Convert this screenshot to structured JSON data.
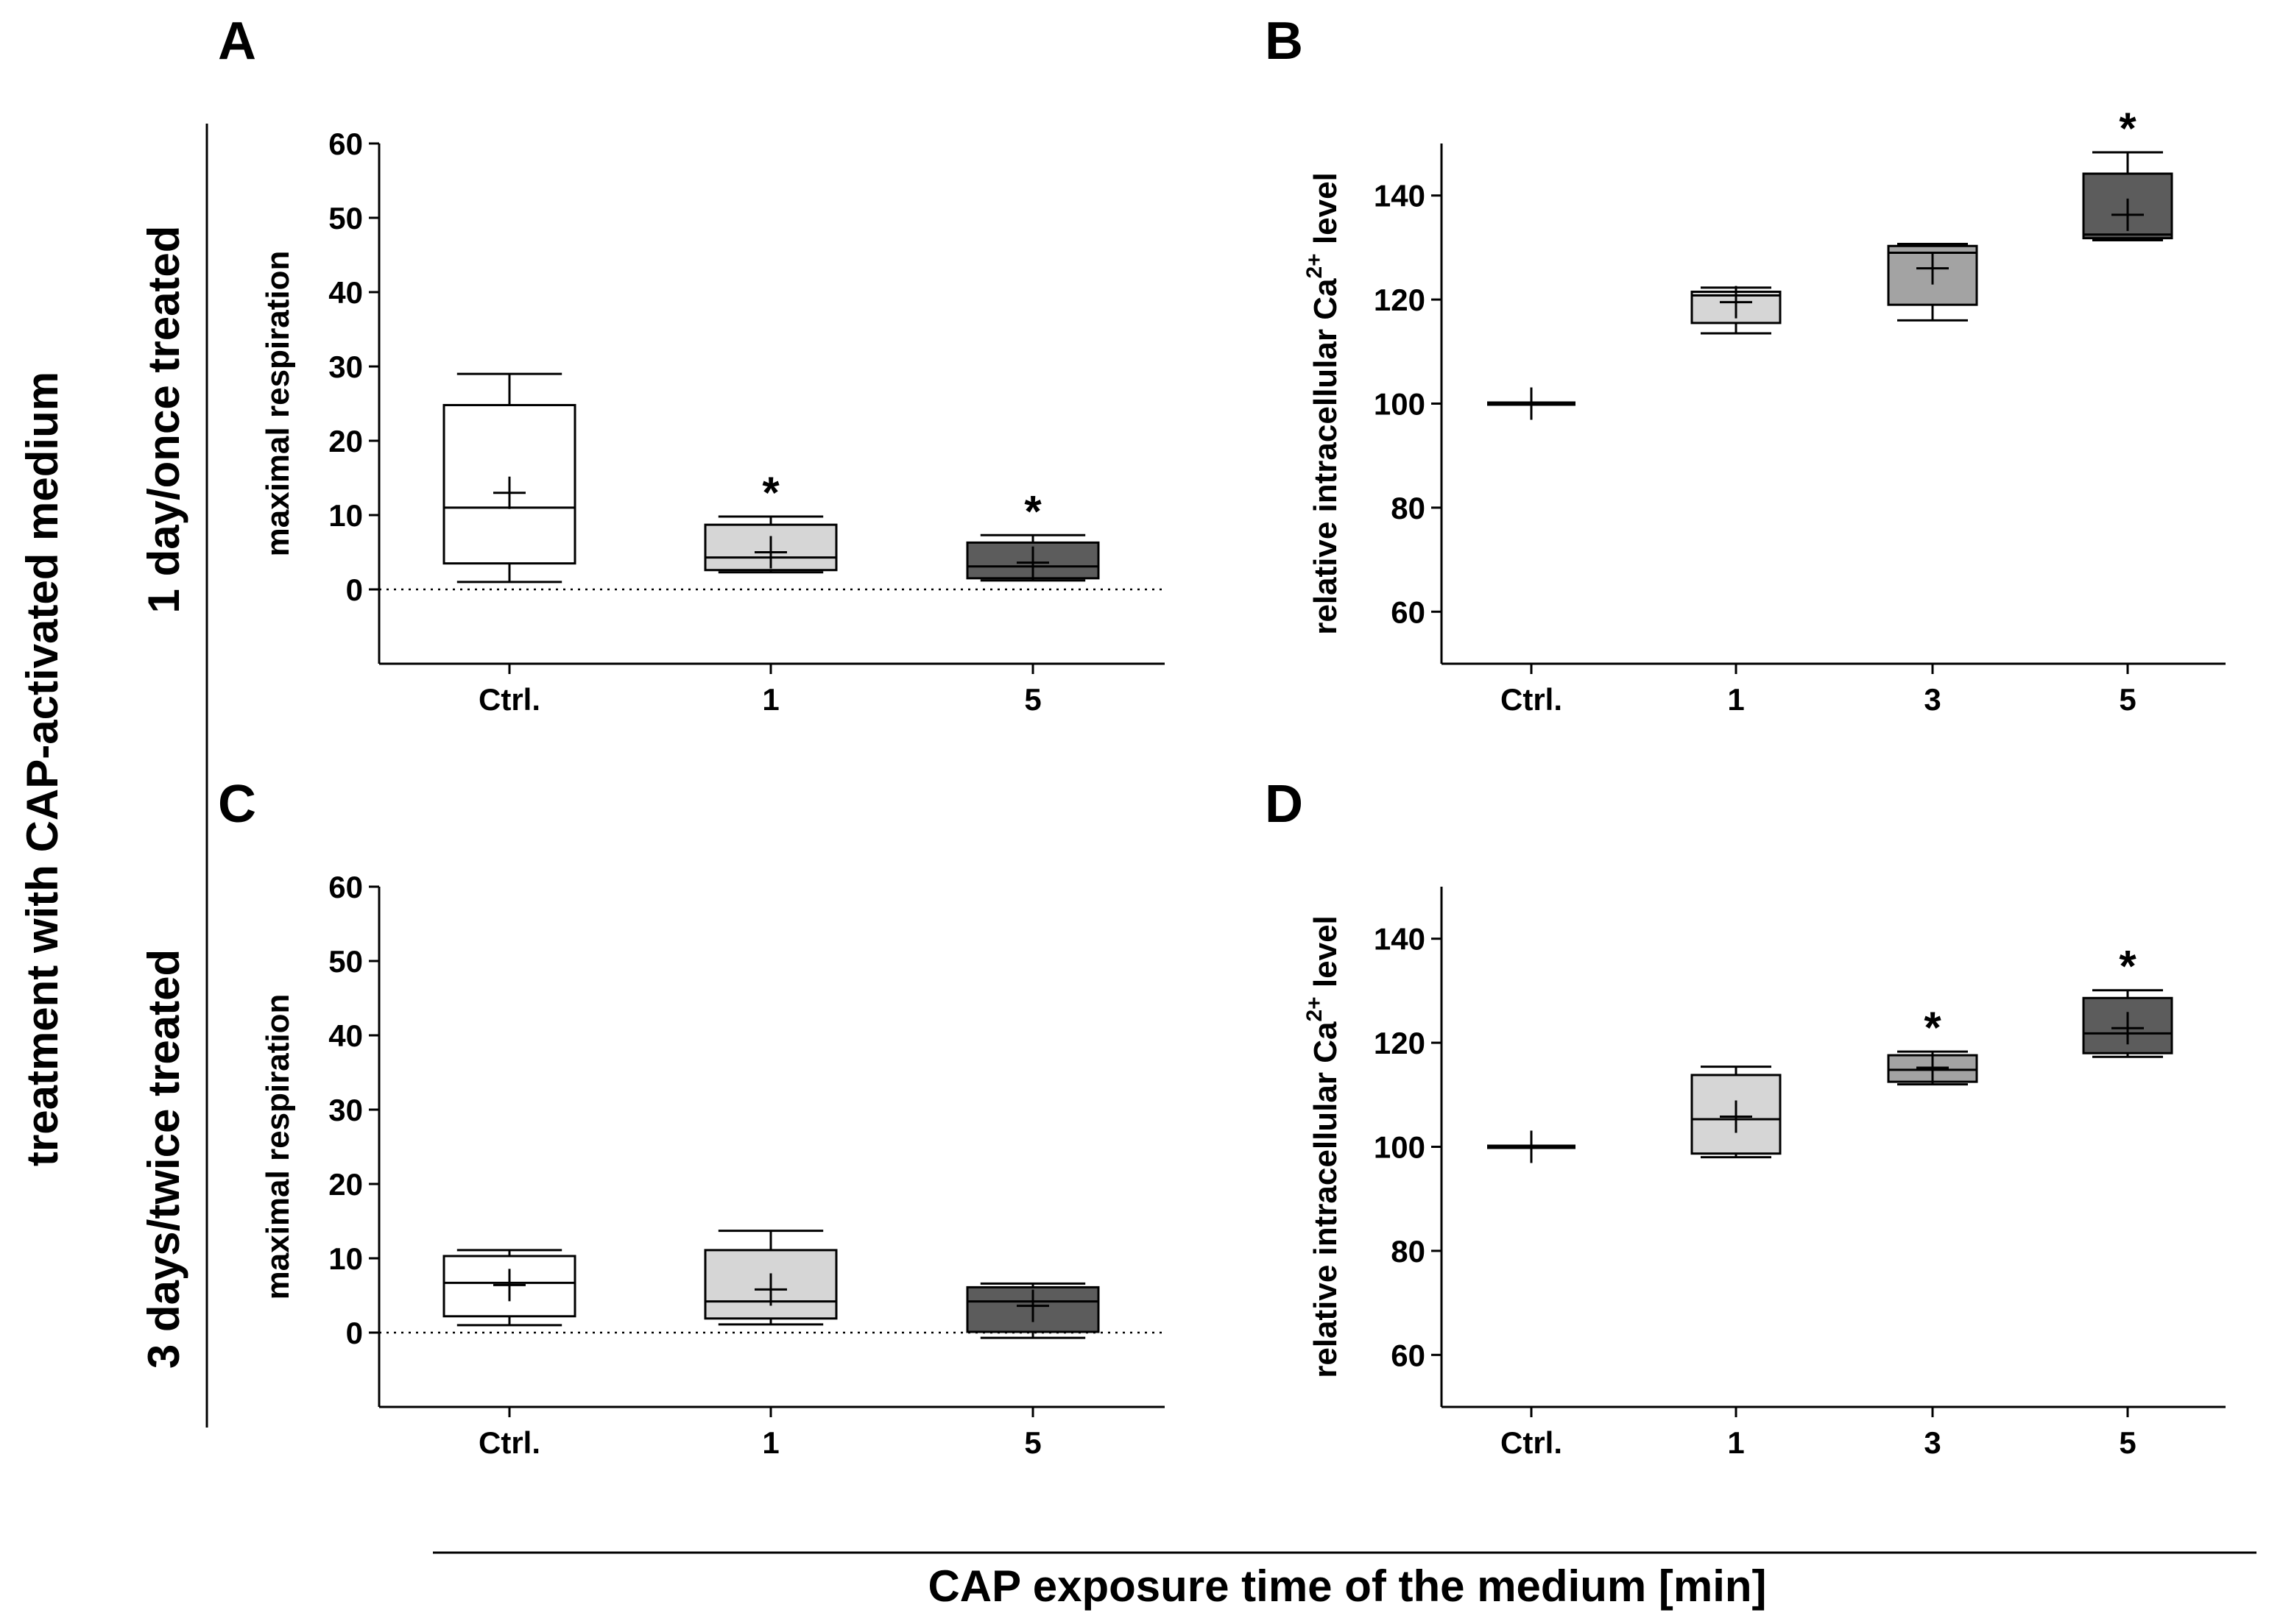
{
  "figure": {
    "left_title": "treatment with CAP-activated medium",
    "row_labels": [
      "1 day/once treated",
      "3 days/twice treated"
    ],
    "bottom_xlabel": "CAP exposure time of the medium [min]",
    "significance_marker": "*",
    "colors": {
      "Ctrl.": "#ffffff",
      "1": "#d6d6d6",
      "3": "#a3a3a3",
      "5": "#5c5c5c",
      "stroke": "#000000"
    }
  },
  "chart_data": [
    {
      "type": "box",
      "panel": "A",
      "ylabel": "maximal respiration",
      "categories": [
        "Ctrl.",
        "1",
        "5"
      ],
      "ylim": [
        -10,
        60
      ],
      "yticks": [
        0,
        10,
        20,
        30,
        40,
        50,
        60
      ],
      "zero_line": true,
      "boxes": [
        {
          "category": "Ctrl.",
          "min": 1,
          "q1": 3.5,
          "median": 11,
          "q3": 24.8,
          "max": 29,
          "mean": 13,
          "sig": false
        },
        {
          "category": "1",
          "min": 2.3,
          "q1": 2.6,
          "median": 4.3,
          "q3": 8.7,
          "max": 9.8,
          "mean": 5,
          "sig": true
        },
        {
          "category": "5",
          "min": 1.2,
          "q1": 1.5,
          "median": 3.1,
          "q3": 6.3,
          "max": 7.3,
          "mean": 3.6,
          "sig": true
        }
      ]
    },
    {
      "type": "box",
      "panel": "B",
      "ylabel": "relative intracellular Ca²⁺ level",
      "ylabel_parts": [
        "relative intracellular Ca",
        "2+",
        " level"
      ],
      "categories": [
        "Ctrl.",
        "1",
        "3",
        "5"
      ],
      "ylim": [
        50,
        150
      ],
      "yticks": [
        60,
        80,
        100,
        120,
        140
      ],
      "zero_line": false,
      "boxes": [
        {
          "category": "Ctrl.",
          "min": 100,
          "q1": 100,
          "median": 100,
          "q3": 100,
          "max": 100,
          "mean": 100,
          "sig": false
        },
        {
          "category": "1",
          "min": 113.5,
          "q1": 115.5,
          "median": 120.8,
          "q3": 121.5,
          "max": 122.3,
          "mean": 119.5,
          "sig": false
        },
        {
          "category": "3",
          "min": 116,
          "q1": 119,
          "median": 129,
          "q3": 130.3,
          "max": 130.7,
          "mean": 126,
          "sig": false
        },
        {
          "category": "5",
          "min": 131.4,
          "q1": 131.8,
          "median": 132.5,
          "q3": 144.2,
          "max": 148.3,
          "mean": 136.3,
          "sig": true
        }
      ]
    },
    {
      "type": "box",
      "panel": "C",
      "ylabel": "maximal respiration",
      "categories": [
        "Ctrl.",
        "1",
        "5"
      ],
      "ylim": [
        -10,
        60
      ],
      "yticks": [
        0,
        10,
        20,
        30,
        40,
        50,
        60
      ],
      "zero_line": true,
      "boxes": [
        {
          "category": "Ctrl.",
          "min": 1,
          "q1": 2.2,
          "median": 6.7,
          "q3": 10.3,
          "max": 11.1,
          "mean": 6.4,
          "sig": false
        },
        {
          "category": "1",
          "min": 1.1,
          "q1": 1.9,
          "median": 4.2,
          "q3": 11.1,
          "max": 13.7,
          "mean": 5.8,
          "sig": false
        },
        {
          "category": "5",
          "min": -0.7,
          "q1": 0.1,
          "median": 4.2,
          "q3": 6.1,
          "max": 6.6,
          "mean": 3.6,
          "sig": false
        }
      ]
    },
    {
      "type": "box",
      "panel": "D",
      "ylabel": "relative intracellular Ca²⁺ level",
      "ylabel_parts": [
        "relative intracellular Ca",
        "2+",
        " level"
      ],
      "categories": [
        "Ctrl.",
        "1",
        "3",
        "5"
      ],
      "ylim": [
        50,
        150
      ],
      "yticks": [
        60,
        80,
        100,
        120,
        140
      ],
      "zero_line": false,
      "boxes": [
        {
          "category": "Ctrl.",
          "min": 100,
          "q1": 100,
          "median": 100,
          "q3": 100,
          "max": 100,
          "mean": 100,
          "sig": false
        },
        {
          "category": "1",
          "min": 98,
          "q1": 98.7,
          "median": 105.3,
          "q3": 113.8,
          "max": 115.4,
          "mean": 105.8,
          "sig": false
        },
        {
          "category": "3",
          "min": 112,
          "q1": 112.5,
          "median": 114.8,
          "q3": 117.6,
          "max": 118.3,
          "mean": 115.2,
          "sig": true
        },
        {
          "category": "5",
          "min": 117.3,
          "q1": 118,
          "median": 121.8,
          "q3": 128.6,
          "max": 130.1,
          "mean": 122.8,
          "sig": true
        }
      ]
    }
  ]
}
